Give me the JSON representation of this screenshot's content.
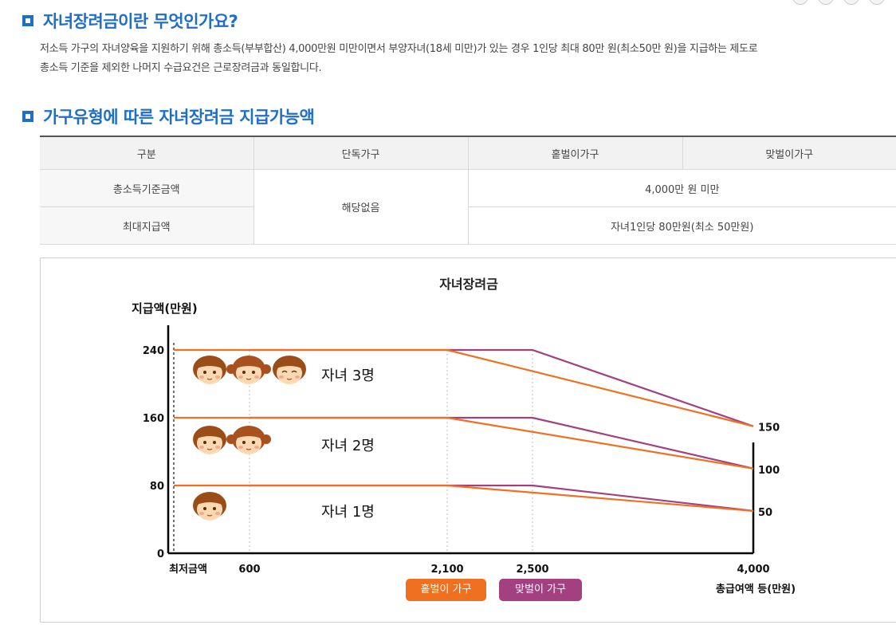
{
  "section1": {
    "title": "자녀장려금이란 무엇인가요?",
    "desc_line1": "저소득 가구의 자녀양육을 지원하기 위해 총소득(부부합산) 4,000만원 미만이면서 부양자녀(18세 미만)가 있는 경우 1인당 최대 80만 원(최소50만 원)을 지급하는 제도로",
    "desc_line2": "총소득 기준을 제외한 나머지 수급요건은 근로장려금과 동일합니다."
  },
  "section2": {
    "title": "가구유형에 따른 자녀장려금 지급가능액"
  },
  "table": {
    "headers": [
      "구분",
      "단독가구",
      "홑벌이가구",
      "맞벌이가구"
    ],
    "row1_label": "총소득기준금액",
    "row2_label": "최대지급액",
    "single_value": "해당없음",
    "row1_value": "4,000만 원 미만",
    "row2_value": "자녀1인당 80만원(최소 50만원)"
  },
  "chart_data": {
    "type": "line",
    "title": "자녀장려금",
    "ylabel": "지급액(만원)",
    "xlabel": "총급여액 등(만원)",
    "ylim": [
      0,
      240
    ],
    "y_ticks": [
      "0",
      "80",
      "160",
      "240"
    ],
    "x_ticks": [
      {
        "label": "최저금액",
        "x": 0
      },
      {
        "label": "600",
        "x": 600
      },
      {
        "label": "2,100",
        "x": 2100
      },
      {
        "label": "2,500",
        "x": 2500
      },
      {
        "label": "4,000",
        "x": 4000
      }
    ],
    "right_labels": [
      {
        "label": "150",
        "value": 150
      },
      {
        "label": "100",
        "value": 100
      },
      {
        "label": "50",
        "value": 50
      }
    ],
    "groups": [
      {
        "label": "자녀 3명",
        "children": 3,
        "single_earner": [
          [
            0,
            240
          ],
          [
            2100,
            240
          ],
          [
            4000,
            150
          ]
        ],
        "dual_earner": [
          [
            600,
            240
          ],
          [
            2500,
            240
          ],
          [
            4000,
            150
          ]
        ]
      },
      {
        "label": "자녀 2명",
        "children": 2,
        "single_earner": [
          [
            0,
            160
          ],
          [
            2100,
            160
          ],
          [
            4000,
            100
          ]
        ],
        "dual_earner": [
          [
            600,
            160
          ],
          [
            2500,
            160
          ],
          [
            4000,
            100
          ]
        ]
      },
      {
        "label": "자녀 1명",
        "children": 1,
        "single_earner": [
          [
            0,
            80
          ],
          [
            2100,
            80
          ],
          [
            4000,
            50
          ]
        ],
        "dual_earner": [
          [
            600,
            80
          ],
          [
            2500,
            80
          ],
          [
            4000,
            50
          ]
        ]
      }
    ],
    "legend": [
      {
        "label": "홑벌이 가구",
        "color": "#f07022"
      },
      {
        "label": "맞벌이 가구",
        "color": "#a3407f"
      }
    ],
    "colors": {
      "single": "#f07022",
      "dual": "#a3407f",
      "axis": "#000000",
      "grid": "#bbbbbb"
    }
  }
}
